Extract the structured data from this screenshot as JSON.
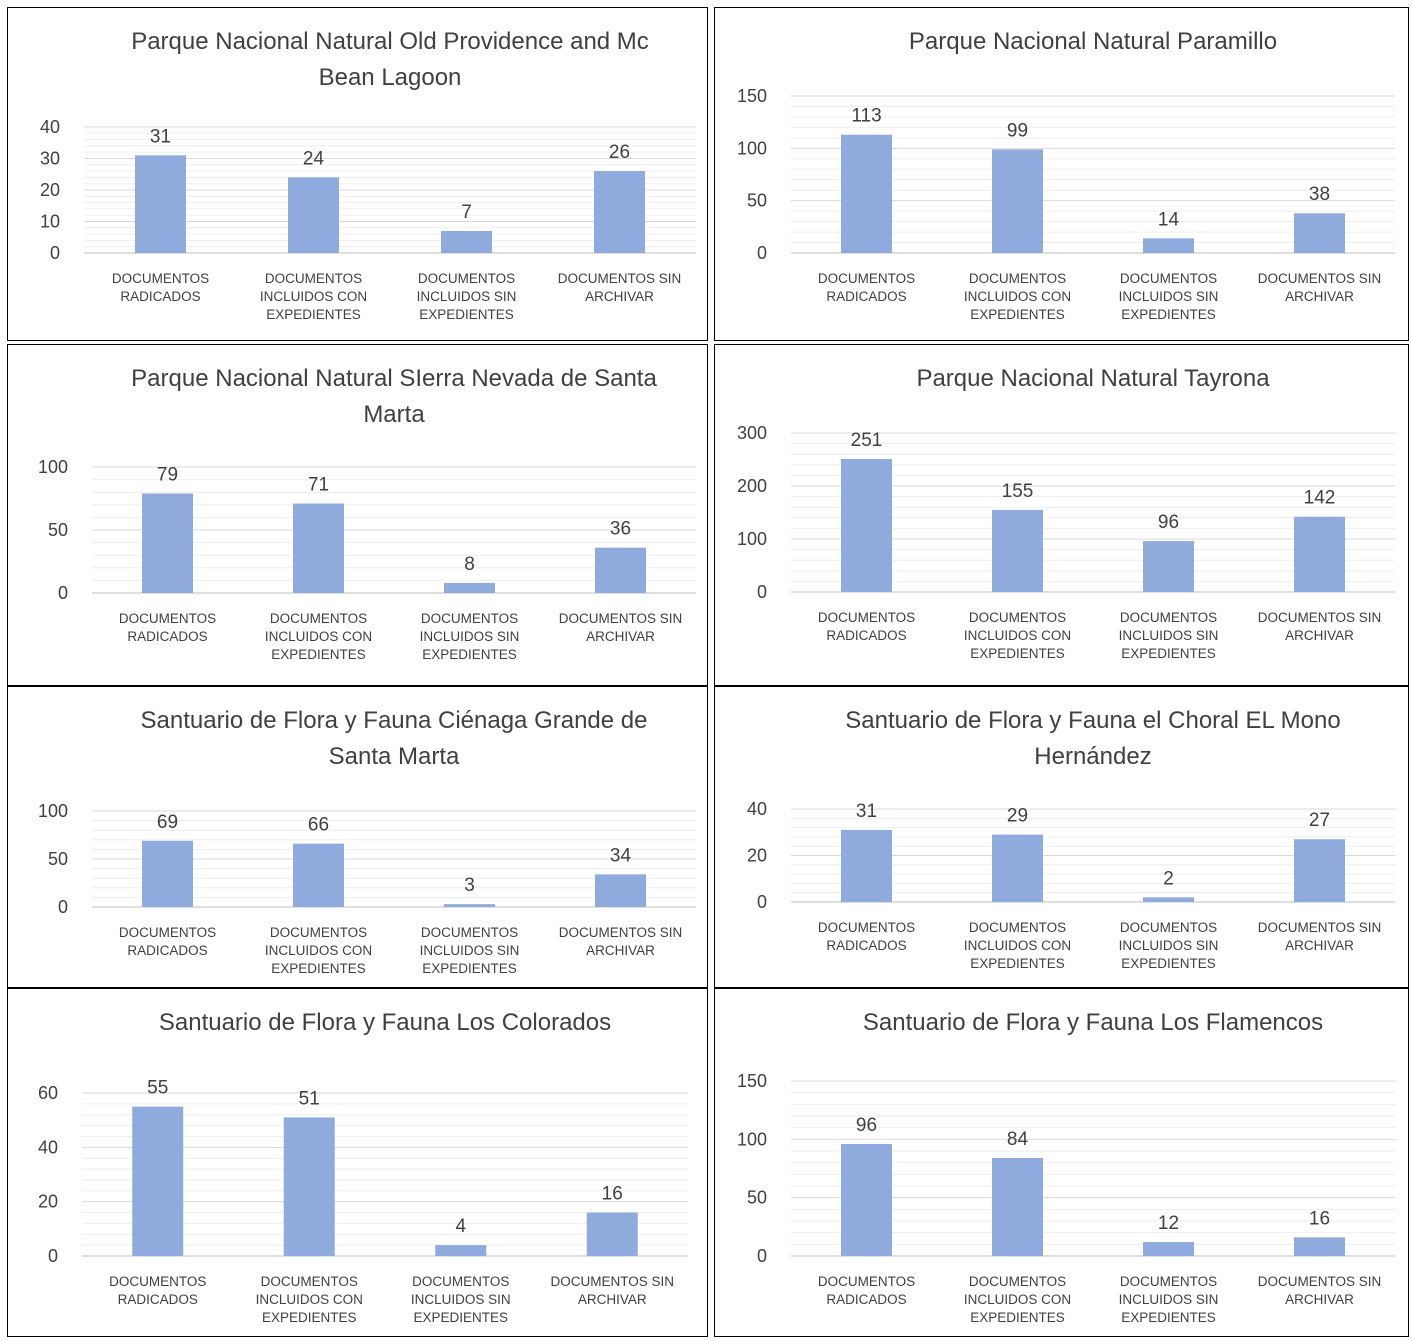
{
  "colors": {
    "bar": "#8faadc",
    "grid_major": "#d9d9d9",
    "grid_minor": "#eeeeee",
    "text": "#404040"
  },
  "chart_data": [
    {
      "type": "bar",
      "title": [
        "Parque Nacional Natural Old Providence and Mc",
        "Bean Lagoon"
      ],
      "categories": [
        [
          "DOCUMENTOS",
          "RADICADOS"
        ],
        [
          "DOCUMENTOS",
          "INCLUIDOS CON",
          "EXPEDIENTES"
        ],
        [
          "DOCUMENTOS",
          "INCLUIDOS SIN",
          "EXPEDIENTES"
        ],
        [
          "DOCUMENTOS SIN",
          "ARCHIVAR"
        ]
      ],
      "values": [
        31,
        24,
        7,
        26
      ],
      "yticks": [
        0,
        10,
        20,
        30,
        40
      ],
      "ylim": [
        0,
        40
      ],
      "grid": true
    },
    {
      "type": "bar",
      "title": [
        "Parque Nacional Natural Paramillo"
      ],
      "categories": [
        [
          "DOCUMENTOS",
          "RADICADOS"
        ],
        [
          "DOCUMENTOS",
          "INCLUIDOS CON",
          "EXPEDIENTES"
        ],
        [
          "DOCUMENTOS",
          "INCLUIDOS SIN",
          "EXPEDIENTES"
        ],
        [
          "DOCUMENTOS SIN",
          "ARCHIVAR"
        ]
      ],
      "values": [
        113,
        99,
        14,
        38
      ],
      "yticks": [
        0,
        50,
        100,
        150
      ],
      "ylim": [
        0,
        150
      ],
      "grid": true
    },
    {
      "type": "bar",
      "title": [
        "Parque Nacional Natural SIerra Nevada de Santa",
        "Marta"
      ],
      "categories": [
        [
          "DOCUMENTOS",
          "RADICADOS"
        ],
        [
          "DOCUMENTOS",
          "INCLUIDOS CON",
          "EXPEDIENTES"
        ],
        [
          "DOCUMENTOS",
          "INCLUIDOS SIN",
          "EXPEDIENTES"
        ],
        [
          "DOCUMENTOS SIN",
          "ARCHIVAR"
        ]
      ],
      "values": [
        79,
        71,
        8,
        36
      ],
      "yticks": [
        0,
        50,
        100
      ],
      "ylim": [
        0,
        100
      ],
      "grid": true
    },
    {
      "type": "bar",
      "title": [
        "Parque Nacional Natural Tayrona"
      ],
      "categories": [
        [
          "DOCUMENTOS",
          "RADICADOS"
        ],
        [
          "DOCUMENTOS",
          "INCLUIDOS CON",
          "EXPEDIENTES"
        ],
        [
          "DOCUMENTOS",
          "INCLUIDOS SIN",
          "EXPEDIENTES"
        ],
        [
          "DOCUMENTOS SIN",
          "ARCHIVAR"
        ]
      ],
      "values": [
        251,
        155,
        96,
        142
      ],
      "yticks": [
        0,
        100,
        200,
        300
      ],
      "ylim": [
        0,
        300
      ],
      "grid": true
    },
    {
      "type": "bar",
      "title": [
        "Santuario de Flora y Fauna Ciénaga Grande de",
        "Santa Marta"
      ],
      "categories": [
        [
          "DOCUMENTOS",
          "RADICADOS"
        ],
        [
          "DOCUMENTOS",
          "INCLUIDOS CON",
          "EXPEDIENTES"
        ],
        [
          "DOCUMENTOS",
          "INCLUIDOS SIN",
          "EXPEDIENTES"
        ],
        [
          "DOCUMENTOS SIN",
          "ARCHIVAR"
        ]
      ],
      "values": [
        69,
        66,
        3,
        34
      ],
      "yticks": [
        0,
        50,
        100
      ],
      "ylim": [
        0,
        100
      ],
      "grid": true
    },
    {
      "type": "bar",
      "title": [
        "Santuario de Flora y Fauna el Choral EL Mono",
        "Hernández"
      ],
      "categories": [
        [
          "DOCUMENTOS",
          "RADICADOS"
        ],
        [
          "DOCUMENTOS",
          "INCLUIDOS CON",
          "EXPEDIENTES"
        ],
        [
          "DOCUMENTOS",
          "INCLUIDOS SIN",
          "EXPEDIENTES"
        ],
        [
          "DOCUMENTOS SIN",
          "ARCHIVAR"
        ]
      ],
      "values": [
        31,
        29,
        2,
        27
      ],
      "yticks": [
        0,
        20,
        40
      ],
      "ylim": [
        0,
        40
      ],
      "grid": true
    },
    {
      "type": "bar",
      "title": [
        "Santuario de Flora y Fauna Los Colorados"
      ],
      "categories": [
        [
          "DOCUMENTOS",
          "RADICADOS"
        ],
        [
          "DOCUMENTOS",
          "INCLUIDOS CON",
          "EXPEDIENTES"
        ],
        [
          "DOCUMENTOS",
          "INCLUIDOS SIN",
          "EXPEDIENTES"
        ],
        [
          "DOCUMENTOS SIN",
          "ARCHIVAR"
        ]
      ],
      "values": [
        55,
        51,
        4,
        16
      ],
      "yticks": [
        0,
        20,
        40,
        60
      ],
      "ylim": [
        0,
        60
      ],
      "grid": true
    },
    {
      "type": "bar",
      "title": [
        "Santuario de Flora y Fauna Los Flamencos"
      ],
      "categories": [
        [
          "DOCUMENTOS",
          "RADICADOS"
        ],
        [
          "DOCUMENTOS",
          "INCLUIDOS CON",
          "EXPEDIENTES"
        ],
        [
          "DOCUMENTOS",
          "INCLUIDOS SIN",
          "EXPEDIENTES"
        ],
        [
          "DOCUMENTOS SIN",
          "ARCHIVAR"
        ]
      ],
      "values": [
        96,
        84,
        12,
        16
      ],
      "yticks": [
        0,
        50,
        100,
        150
      ],
      "ylim": [
        0,
        150
      ],
      "grid": true
    }
  ]
}
